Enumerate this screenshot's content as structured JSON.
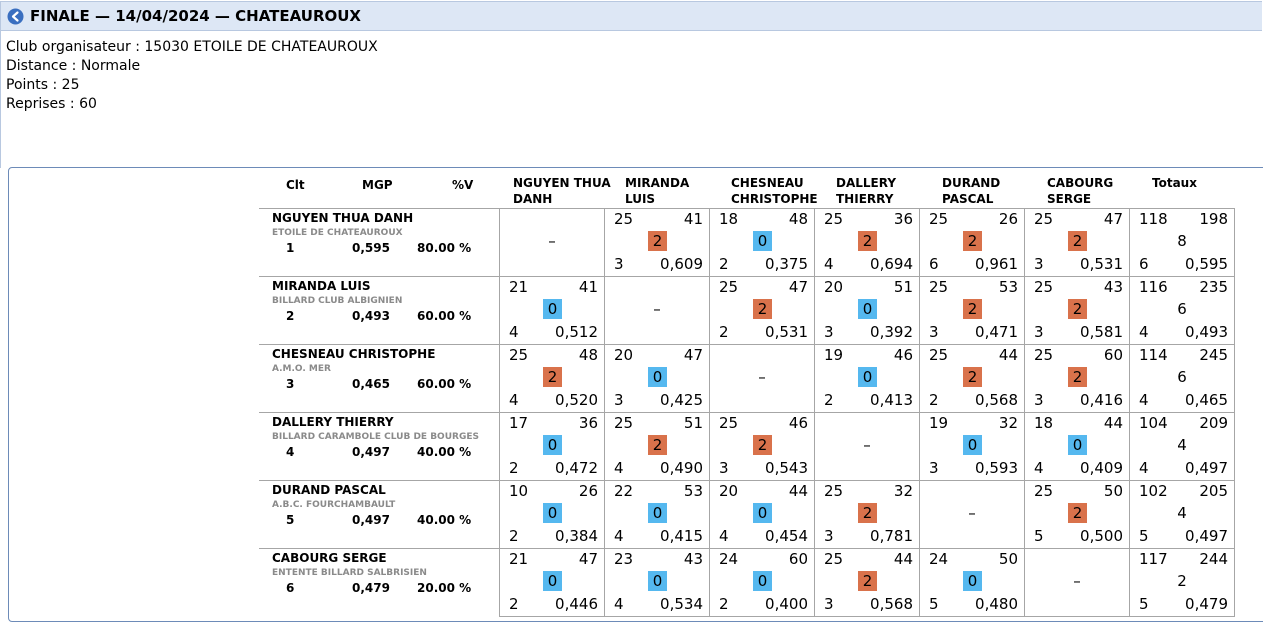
{
  "header": {
    "title": "FINALE — 14/04/2024 — CHATEAUROUX",
    "back_icon": "back-arrow-icon"
  },
  "info": {
    "organizer": "Club organisateur : 15030 ETOILE DE CHATEAUROUX",
    "distance": "Distance : Normale",
    "points": "Points : 25",
    "reprises": "Reprises : 60"
  },
  "table_headers": {
    "clt": "Clt",
    "mgp": "MGP",
    "pv": "%V",
    "opponents": [
      [
        "NGUYEN THUA",
        "DANH"
      ],
      [
        "MIRANDA",
        "LUIS"
      ],
      [
        "CHESNEAU",
        "CHRISTOPHE"
      ],
      [
        "DALLERY",
        "THIERRY"
      ],
      [
        "DURAND",
        "PASCAL"
      ],
      [
        "CABOURG",
        "SERGE"
      ]
    ],
    "totals": "Totaux"
  },
  "colors": {
    "win": "#d9724b",
    "loss": "#55b8ef"
  },
  "players": [
    {
      "name": "NGUYEN THUA DANH",
      "club": "ETOILE DE CHATEAUROUX",
      "rank": "1",
      "mgp": "0,595",
      "pct": "80.00 %",
      "cells": [
        null,
        {
          "pts": "25",
          "rep": "41",
          "mp": "2",
          "inn": "3",
          "avg": "0,609"
        },
        {
          "pts": "18",
          "rep": "48",
          "mp": "0",
          "inn": "2",
          "avg": "0,375"
        },
        {
          "pts": "25",
          "rep": "36",
          "mp": "2",
          "inn": "4",
          "avg": "0,694"
        },
        {
          "pts": "25",
          "rep": "26",
          "mp": "2",
          "inn": "6",
          "avg": "0,961"
        },
        {
          "pts": "25",
          "rep": "47",
          "mp": "2",
          "inn": "3",
          "avg": "0,531"
        }
      ],
      "total": {
        "pts": "118",
        "rep": "198",
        "mp": "8",
        "inn": "6",
        "avg": "0,595"
      }
    },
    {
      "name": "MIRANDA LUIS",
      "club": "BILLARD CLUB ALBIGNIEN",
      "rank": "2",
      "mgp": "0,493",
      "pct": "60.00 %",
      "cells": [
        {
          "pts": "21",
          "rep": "41",
          "mp": "0",
          "inn": "4",
          "avg": "0,512"
        },
        null,
        {
          "pts": "25",
          "rep": "47",
          "mp": "2",
          "inn": "2",
          "avg": "0,531"
        },
        {
          "pts": "20",
          "rep": "51",
          "mp": "0",
          "inn": "3",
          "avg": "0,392"
        },
        {
          "pts": "25",
          "rep": "53",
          "mp": "2",
          "inn": "3",
          "avg": "0,471"
        },
        {
          "pts": "25",
          "rep": "43",
          "mp": "2",
          "inn": "3",
          "avg": "0,581"
        }
      ],
      "total": {
        "pts": "116",
        "rep": "235",
        "mp": "6",
        "inn": "4",
        "avg": "0,493"
      }
    },
    {
      "name": "CHESNEAU CHRISTOPHE",
      "club": "A.M.O. MER",
      "rank": "3",
      "mgp": "0,465",
      "pct": "60.00 %",
      "cells": [
        {
          "pts": "25",
          "rep": "48",
          "mp": "2",
          "inn": "4",
          "avg": "0,520"
        },
        {
          "pts": "20",
          "rep": "47",
          "mp": "0",
          "inn": "3",
          "avg": "0,425"
        },
        null,
        {
          "pts": "19",
          "rep": "46",
          "mp": "0",
          "inn": "2",
          "avg": "0,413"
        },
        {
          "pts": "25",
          "rep": "44",
          "mp": "2",
          "inn": "2",
          "avg": "0,568"
        },
        {
          "pts": "25",
          "rep": "60",
          "mp": "2",
          "inn": "3",
          "avg": "0,416"
        }
      ],
      "total": {
        "pts": "114",
        "rep": "245",
        "mp": "6",
        "inn": "4",
        "avg": "0,465"
      }
    },
    {
      "name": "DALLERY THIERRY",
      "club": "BILLARD CARAMBOLE CLUB DE BOURGES",
      "rank": "4",
      "mgp": "0,497",
      "pct": "40.00 %",
      "cells": [
        {
          "pts": "17",
          "rep": "36",
          "mp": "0",
          "inn": "2",
          "avg": "0,472"
        },
        {
          "pts": "25",
          "rep": "51",
          "mp": "2",
          "inn": "4",
          "avg": "0,490"
        },
        {
          "pts": "25",
          "rep": "46",
          "mp": "2",
          "inn": "3",
          "avg": "0,543"
        },
        null,
        {
          "pts": "19",
          "rep": "32",
          "mp": "0",
          "inn": "3",
          "avg": "0,593"
        },
        {
          "pts": "18",
          "rep": "44",
          "mp": "0",
          "inn": "4",
          "avg": "0,409"
        }
      ],
      "total": {
        "pts": "104",
        "rep": "209",
        "mp": "4",
        "inn": "4",
        "avg": "0,497"
      }
    },
    {
      "name": "DURAND PASCAL",
      "club": "A.B.C. FOURCHAMBAULT",
      "rank": "5",
      "mgp": "0,497",
      "pct": "40.00 %",
      "cells": [
        {
          "pts": "10",
          "rep": "26",
          "mp": "0",
          "inn": "2",
          "avg": "0,384"
        },
        {
          "pts": "22",
          "rep": "53",
          "mp": "0",
          "inn": "4",
          "avg": "0,415"
        },
        {
          "pts": "20",
          "rep": "44",
          "mp": "0",
          "inn": "4",
          "avg": "0,454"
        },
        {
          "pts": "25",
          "rep": "32",
          "mp": "2",
          "inn": "3",
          "avg": "0,781"
        },
        null,
        {
          "pts": "25",
          "rep": "50",
          "mp": "2",
          "inn": "5",
          "avg": "0,500"
        }
      ],
      "total": {
        "pts": "102",
        "rep": "205",
        "mp": "4",
        "inn": "5",
        "avg": "0,497"
      }
    },
    {
      "name": "CABOURG SERGE",
      "club": "ENTENTE BILLARD SALBRISIEN",
      "rank": "6",
      "mgp": "0,479",
      "pct": "20.00 %",
      "cells": [
        {
          "pts": "21",
          "rep": "47",
          "mp": "0",
          "inn": "2",
          "avg": "0,446"
        },
        {
          "pts": "23",
          "rep": "43",
          "mp": "0",
          "inn": "4",
          "avg": "0,534"
        },
        {
          "pts": "24",
          "rep": "60",
          "mp": "0",
          "inn": "2",
          "avg": "0,400"
        },
        {
          "pts": "25",
          "rep": "44",
          "mp": "2",
          "inn": "3",
          "avg": "0,568"
        },
        {
          "pts": "24",
          "rep": "50",
          "mp": "0",
          "inn": "5",
          "avg": "0,480"
        },
        null
      ],
      "total": {
        "pts": "117",
        "rep": "244",
        "mp": "2",
        "inn": "5",
        "avg": "0,479"
      }
    }
  ],
  "empty_cell": "–"
}
